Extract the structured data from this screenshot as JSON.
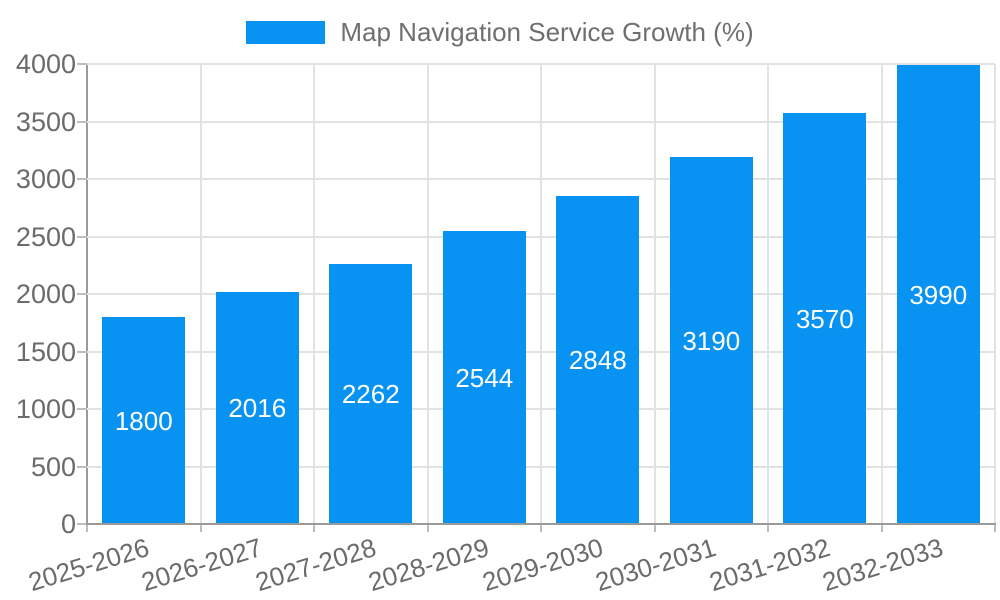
{
  "legend": {
    "label": "Map Navigation Service Growth (%)"
  },
  "chart_data": {
    "type": "bar",
    "title": "Map Navigation Service Growth (%)",
    "categories": [
      "2025-2026",
      "2026-2027",
      "2027-2028",
      "2028-2029",
      "2029-2030",
      "2030-2031",
      "2031-2032",
      "2032-2033"
    ],
    "values": [
      1800,
      2016,
      2262,
      2544,
      2848,
      3190,
      3570,
      3990
    ],
    "series": [
      {
        "name": "Map Navigation Service Growth (%)",
        "values": [
          1800,
          2016,
          2262,
          2544,
          2848,
          3190,
          3570,
          3990
        ]
      }
    ],
    "xlabel": "",
    "ylabel": "",
    "ylim": [
      0,
      4000
    ],
    "yticks": [
      0,
      500,
      1000,
      1500,
      2000,
      2500,
      3000,
      3500,
      4000
    ],
    "grid": true,
    "legend_position": "top",
    "bar_labels_inside": true
  },
  "colors": {
    "bar": "#0892f2",
    "bar_label": "#ffffff",
    "grid": "#e2e2e2",
    "axis": "#9a9a9a",
    "tick_mark": "#bdbdbd",
    "tick_text": "#6b6b6b",
    "legend_text": "#6f6f6f",
    "background": "#ffffff"
  }
}
